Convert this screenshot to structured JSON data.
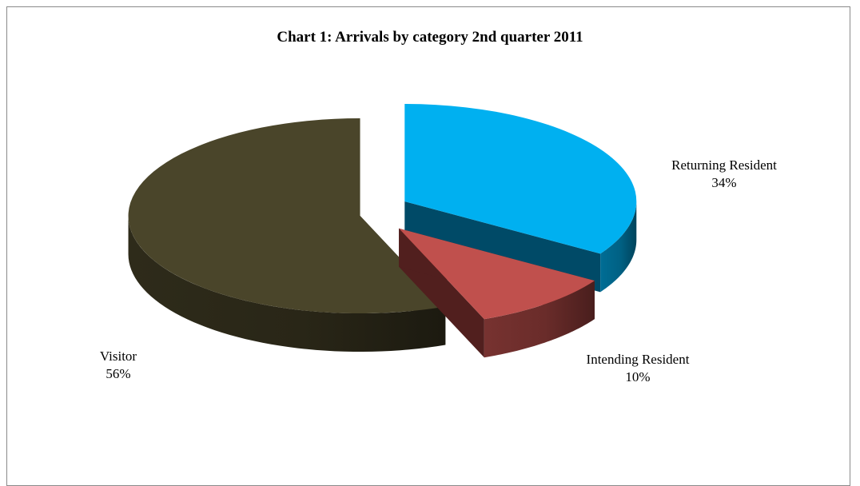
{
  "chart_data": {
    "type": "pie",
    "title": "Chart 1: Arrivals by category 2nd quarter 2011",
    "three_d": true,
    "exploded": true,
    "slices": [
      {
        "name": "Returning Resident",
        "value": 34,
        "label": "34%",
        "color": "#00b0f0",
        "side_color": "#004a67"
      },
      {
        "name": "Intending Resident",
        "value": 10,
        "label": "10%",
        "color": "#c0504d",
        "side_color": "#511f1e"
      },
      {
        "name": "Visitor",
        "value": 56,
        "label": "56%",
        "color": "#4a452a",
        "side_color": "#2b2818"
      }
    ]
  }
}
